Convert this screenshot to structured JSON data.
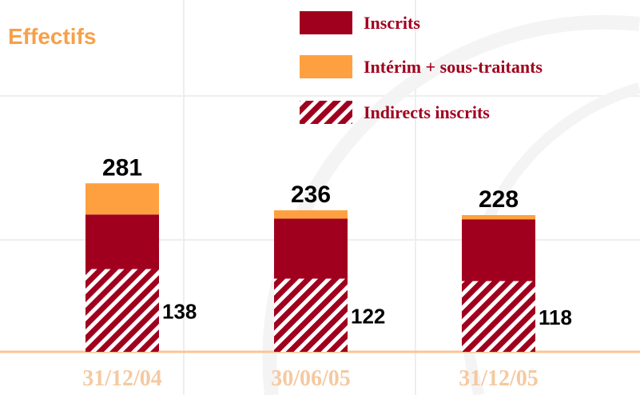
{
  "chart_data": {
    "type": "stacked_bar",
    "title": "Effectifs",
    "categories": [
      "31/12/04",
      "30/06/05",
      "31/12/05"
    ],
    "series": [
      {
        "name": "Indirects inscrits",
        "color": "#a0001e",
        "pattern": "hatch",
        "values": [
          138,
          122,
          118
        ]
      },
      {
        "name": "Inscrits",
        "color": "#a0001e",
        "values": [
          91,
          100,
          103
        ]
      },
      {
        "name": "Intérim + sous-traitants",
        "color": "#ffa040",
        "values": [
          52,
          14,
          7
        ]
      }
    ],
    "legend_order": [
      1,
      2,
      0
    ],
    "totals": [
      281,
      236,
      228
    ],
    "ylim": [
      0,
      400
    ]
  }
}
